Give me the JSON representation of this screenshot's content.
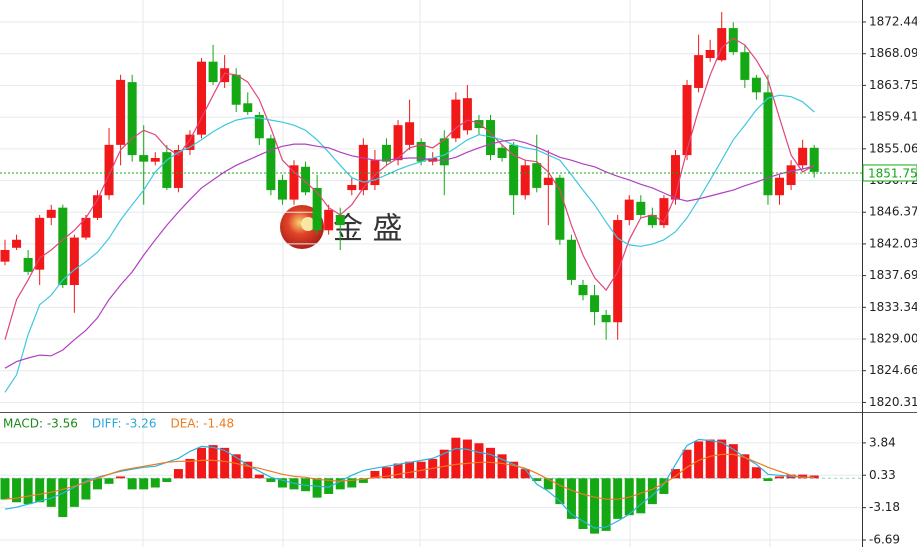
{
  "chart_data": [
    {
      "type": "candlestick",
      "open": [
        1839.6,
        1841.5,
        1840.1,
        1838.5,
        1845.6,
        1847.0,
        1836.4,
        1842.9,
        1845.6,
        1848.7,
        1855.6,
        1864.2,
        1854.2,
        1853.3,
        1854.6,
        1849.7,
        1854.9,
        1857.0,
        1867.0,
        1864.2,
        1865.2,
        1861.3,
        1859.7,
        1856.5,
        1850.8,
        1848.1,
        1852.6,
        1849.7,
        1843.9,
        1846.0,
        1849.4,
        1849.4,
        1850.1,
        1855.6,
        1853.5,
        1855.6,
        1856.0,
        1853.3,
        1856.5,
        1856.5,
        1857.6,
        1859.0,
        1859.0,
        1855.2,
        1855.6,
        1848.7,
        1853.1,
        1850.1,
        1851.1,
        1842.6,
        1836.4,
        1835.0,
        1832.3,
        1831.3,
        1845.3,
        1847.8,
        1846.0,
        1844.6,
        1848.1,
        1854.2,
        1863.4,
        1867.5,
        1867.2,
        1871.6,
        1868.3,
        1864.8,
        1862.8,
        1848.7,
        1850.1,
        1852.8,
        1855.2
      ],
      "high": [
        1842.6,
        1843.3,
        1841.2,
        1846.0,
        1847.4,
        1847.4,
        1843.3,
        1846.0,
        1849.4,
        1857.9,
        1865.2,
        1865.2,
        1858.3,
        1854.6,
        1855.6,
        1855.6,
        1857.6,
        1867.5,
        1869.3,
        1867.9,
        1866.1,
        1862.8,
        1860.1,
        1857.0,
        1851.5,
        1853.5,
        1853.3,
        1851.5,
        1847.4,
        1847.0,
        1851.1,
        1856.5,
        1854.9,
        1856.5,
        1859.0,
        1861.8,
        1856.5,
        1854.6,
        1857.6,
        1862.8,
        1863.8,
        1859.7,
        1859.7,
        1855.6,
        1856.0,
        1853.5,
        1857.0,
        1854.9,
        1851.5,
        1843.3,
        1837.1,
        1836.4,
        1833.0,
        1846.0,
        1848.7,
        1848.7,
        1847.0,
        1848.7,
        1854.9,
        1864.5,
        1870.7,
        1870.0,
        1873.8,
        1872.4,
        1869.3,
        1865.2,
        1865.2,
        1851.5,
        1853.5,
        1856.3,
        1855.6
      ],
      "low": [
        1839.1,
        1841.2,
        1837.8,
        1836.4,
        1844.6,
        1836.0,
        1832.6,
        1842.6,
        1845.3,
        1848.1,
        1852.8,
        1853.3,
        1847.4,
        1852.8,
        1849.4,
        1849.1,
        1854.2,
        1856.5,
        1863.8,
        1863.4,
        1860.1,
        1859.7,
        1855.6,
        1848.7,
        1847.4,
        1847.4,
        1848.7,
        1843.3,
        1843.3,
        1841.2,
        1848.7,
        1848.7,
        1849.4,
        1852.8,
        1852.8,
        1854.9,
        1852.8,
        1852.8,
        1848.7,
        1856.0,
        1857.0,
        1857.0,
        1853.5,
        1853.3,
        1846.0,
        1848.1,
        1849.1,
        1844.6,
        1841.9,
        1836.4,
        1834.3,
        1830.9,
        1828.9,
        1828.9,
        1844.6,
        1845.6,
        1844.2,
        1844.2,
        1847.4,
        1853.5,
        1862.8,
        1867.0,
        1867.0,
        1867.9,
        1863.4,
        1861.8,
        1847.4,
        1847.4,
        1849.4,
        1852.2,
        1851.1
      ],
      "close": [
        1841.2,
        1842.6,
        1838.2,
        1845.6,
        1846.7,
        1836.4,
        1842.9,
        1845.6,
        1848.7,
        1855.6,
        1864.5,
        1854.2,
        1853.3,
        1853.8,
        1849.7,
        1854.9,
        1857.0,
        1867.0,
        1864.2,
        1866.1,
        1861.1,
        1860.1,
        1856.5,
        1849.4,
        1848.1,
        1852.8,
        1849.1,
        1843.9,
        1846.7,
        1844.6,
        1850.1,
        1855.6,
        1853.5,
        1853.3,
        1858.3,
        1858.7,
        1853.3,
        1853.8,
        1852.8,
        1861.8,
        1862.0,
        1857.9,
        1854.2,
        1853.8,
        1848.7,
        1852.8,
        1849.7,
        1851.1,
        1842.6,
        1837.1,
        1835.0,
        1832.7,
        1831.3,
        1845.3,
        1848.1,
        1846.0,
        1844.6,
        1848.3,
        1854.2,
        1863.8,
        1867.9,
        1868.6,
        1871.6,
        1868.3,
        1864.5,
        1862.8,
        1848.7,
        1851.1,
        1852.8,
        1855.2,
        1851.9
      ],
      "up_color": "#f01818",
      "down_color": "#14a814",
      "lines": [
        {
          "color": "#e0457b",
          "values": [
            1828.9,
            1834.4,
            1837.1,
            1840.1,
            1841.2,
            1842.6,
            1843.9,
            1845.6,
            1848.1,
            1851.5,
            1854.9,
            1856.5,
            1857.6,
            1857.0,
            1855.2,
            1854.2,
            1856.3,
            1859.3,
            1862.4,
            1865.4,
            1865.2,
            1864.2,
            1861.8,
            1857.9,
            1853.5,
            1851.9,
            1850.5,
            1849.1,
            1847.0,
            1846.0,
            1847.4,
            1849.7,
            1851.5,
            1852.8,
            1853.8,
            1855.2,
            1855.6,
            1855.2,
            1856.3,
            1857.9,
            1859.0,
            1858.6,
            1857.2,
            1855.6,
            1854.2,
            1853.5,
            1853.3,
            1851.9,
            1849.4,
            1844.6,
            1840.5,
            1837.4,
            1835.7,
            1838.2,
            1842.6,
            1845.6,
            1846.0,
            1845.0,
            1848.7,
            1854.9,
            1860.4,
            1865.2,
            1868.9,
            1870.2,
            1869.3,
            1867.2,
            1864.5,
            1859.3,
            1854.2,
            1851.9,
            1852.8
          ]
        },
        {
          "color": "#3ec8e0",
          "values": [
            1821.7,
            1824.1,
            1829.6,
            1833.7,
            1835.0,
            1837.1,
            1838.5,
            1839.6,
            1840.9,
            1842.8,
            1845.3,
            1847.4,
            1849.4,
            1851.9,
            1853.5,
            1854.6,
            1855.3,
            1856.3,
            1857.4,
            1858.3,
            1859.0,
            1859.3,
            1859.3,
            1859.0,
            1858.7,
            1858.3,
            1857.6,
            1856.3,
            1854.6,
            1852.8,
            1851.1,
            1850.5,
            1850.8,
            1851.5,
            1852.2,
            1852.8,
            1853.3,
            1853.8,
            1854.2,
            1855.2,
            1856.3,
            1857.0,
            1856.7,
            1856.3,
            1855.6,
            1855.2,
            1854.9,
            1854.2,
            1853.5,
            1851.5,
            1849.4,
            1847.4,
            1845.0,
            1842.8,
            1841.9,
            1841.7,
            1842.0,
            1842.6,
            1843.7,
            1845.6,
            1848.1,
            1850.8,
            1853.5,
            1856.3,
            1858.3,
            1860.4,
            1862.0,
            1862.4,
            1862.2,
            1861.5,
            1860.1
          ]
        },
        {
          "color": "#b040c0",
          "values": [
            1825.0,
            1825.9,
            1826.4,
            1826.8,
            1826.7,
            1827.5,
            1828.9,
            1830.2,
            1831.9,
            1834.4,
            1836.4,
            1838.2,
            1840.5,
            1842.6,
            1844.6,
            1846.4,
            1848.1,
            1849.7,
            1850.8,
            1851.9,
            1852.8,
            1853.5,
            1854.2,
            1854.9,
            1855.4,
            1855.7,
            1855.7,
            1855.4,
            1855.2,
            1854.6,
            1854.1,
            1853.8,
            1853.5,
            1853.5,
            1853.7,
            1853.8,
            1853.8,
            1853.5,
            1853.5,
            1853.9,
            1854.6,
            1855.2,
            1855.7,
            1856.1,
            1856.3,
            1855.9,
            1855.3,
            1854.6,
            1853.9,
            1853.5,
            1853.0,
            1852.6,
            1851.9,
            1851.3,
            1850.8,
            1850.2,
            1849.7,
            1849.0,
            1848.3,
            1847.9,
            1848.2,
            1848.6,
            1849.0,
            1849.4,
            1850.0,
            1850.5,
            1851.1,
            1851.6,
            1852.0,
            1852.3,
            1852.7
          ]
        }
      ],
      "last_price": 1851.75,
      "last_price_color": "#14a814",
      "watermark": "金 盛",
      "ylim": [
        1819.0,
        1875.45
      ],
      "yticks": [
        1872.44,
        1868.09,
        1863.75,
        1859.41,
        1855.06,
        1850.72,
        1846.37,
        1842.03,
        1837.69,
        1833.34,
        {
          "value": 1829,
          "label": "1829.00"
        },
        1824.66,
        1820.31
      ],
      "grid": true
    },
    {
      "type": "macd",
      "labels": [
        {
          "text": "MACD: -3.56",
          "color": "#1a8a1a"
        },
        {
          "text": "DIFF: -3.26",
          "color": "#2aa8d8"
        },
        {
          "text": "DEA: -1.48",
          "color": "#ee7a1e"
        }
      ],
      "histogram": [
        -2.3,
        -2.6,
        -2.8,
        -2.6,
        -3.1,
        -4.2,
        -3.1,
        -2.3,
        -1.2,
        -0.6,
        0.2,
        -1.2,
        -1.2,
        -1.0,
        -0.4,
        1.0,
        2.1,
        3.3,
        3.6,
        3.3,
        2.6,
        1.8,
        0.4,
        -0.4,
        -1.0,
        -1.2,
        -1.4,
        -2.1,
        -1.7,
        -1.2,
        -1.0,
        -0.5,
        0.8,
        1.2,
        1.6,
        1.8,
        1.8,
        2.1,
        3.1,
        4.4,
        4.2,
        3.8,
        3.3,
        2.6,
        1.8,
        1.0,
        -0.3,
        -1.2,
        -2.8,
        -4.4,
        -5.5,
        -6.0,
        -5.7,
        -4.4,
        -4.0,
        -3.8,
        -2.8,
        -1.7,
        1.0,
        3.1,
        4.0,
        4.2,
        4.2,
        3.7,
        2.6,
        1.2,
        -0.3,
        0.2,
        0.4,
        0.4,
        0.3
      ],
      "up_color": "#f01818",
      "down_color": "#14a814",
      "lines": [
        {
          "color": "#2ab5e0",
          "values": [
            -3.35,
            -3.13,
            -2.81,
            -2.48,
            -2.16,
            -1.62,
            -0.97,
            -0.32,
            0.11,
            0.43,
            0.76,
            0.97,
            1.19,
            1.3,
            1.73,
            2.16,
            2.92,
            3.46,
            3.35,
            3.02,
            2.27,
            1.4,
            0.76,
            0.11,
            -0.22,
            -0.54,
            -0.76,
            -0.86,
            -0.97,
            -0.32,
            0.32,
            0.86,
            1.08,
            1.3,
            1.51,
            1.73,
            1.94,
            2.16,
            2.7,
            3.24,
            3.13,
            2.81,
            2.59,
            2.05,
            1.51,
            0.97,
            -0.65,
            -1.4,
            -2.48,
            -3.89,
            -4.64,
            -5.4,
            -5.29,
            -4.64,
            -3.89,
            -2.81,
            -1.84,
            -0.65,
            1.51,
            3.56,
            4.21,
            4.1,
            3.89,
            3.13,
            2.27,
            1.51,
            0.43,
            0.32,
            0.22,
            0.11,
            0.11
          ]
        },
        {
          "color": "#ee7a1e",
          "values": [
            -2.27,
            -2.16,
            -1.94,
            -1.73,
            -1.51,
            -1.19,
            -0.86,
            -0.43,
            0.0,
            0.43,
            0.86,
            1.08,
            1.3,
            1.51,
            1.73,
            1.84,
            1.84,
            1.94,
            1.94,
            1.84,
            1.62,
            1.3,
            1.08,
            0.76,
            0.43,
            0.22,
            0.11,
            -0.11,
            -0.22,
            -0.32,
            -0.22,
            -0.11,
            0.11,
            0.22,
            0.43,
            0.65,
            0.86,
            1.08,
            1.3,
            1.51,
            1.62,
            1.73,
            1.73,
            1.62,
            1.4,
            1.08,
            0.54,
            -0.11,
            -0.76,
            -1.3,
            -1.73,
            -2.05,
            -2.27,
            -2.27,
            -2.05,
            -1.62,
            -1.19,
            -0.54,
            0.22,
            1.19,
            1.94,
            2.38,
            2.59,
            2.59,
            2.27,
            1.73,
            1.19,
            0.76,
            0.32,
            0.11,
            0.11
          ]
        }
      ],
      "ylim": [
        -7.45,
        7.08
      ],
      "yticks": [
        3.84,
        0.33,
        -3.18,
        -6.69
      ],
      "grid": true
    }
  ]
}
